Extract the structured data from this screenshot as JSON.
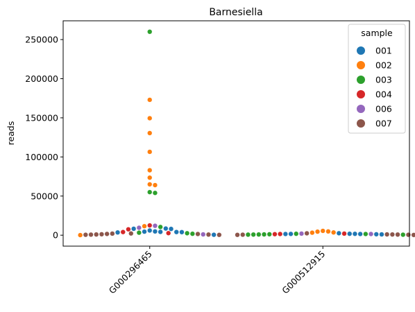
{
  "chart_data": {
    "type": "scatter",
    "subtype": "swarm",
    "title": "Barnesiella",
    "xlabel": "",
    "ylabel": "reads",
    "categories": [
      "G000296465",
      "G000512915"
    ],
    "ylim": [
      -14000,
      274000
    ],
    "yticks": [
      0,
      50000,
      100000,
      150000,
      200000,
      250000
    ],
    "ytick_labels": [
      "0",
      "50000",
      "100000",
      "150000",
      "200000",
      "250000"
    ],
    "grid": false,
    "legend": {
      "title": "sample",
      "placement": "top-right"
    },
    "series": [
      {
        "name": "001",
        "color": "#1f77b4",
        "points": [
          [
            "G000296465",
            4800
          ],
          [
            "G000296465",
            4200
          ],
          [
            "G000296465",
            3900
          ],
          [
            "G000296465",
            3500
          ],
          [
            "G000296465",
            4000
          ],
          [
            "G000296465",
            4500
          ],
          [
            "G000296465",
            8000
          ],
          [
            "G000296465",
            8500
          ],
          [
            "G000296465",
            8200
          ],
          [
            "G000296465",
            6000
          ],
          [
            "G000296465",
            500
          ],
          [
            "G000512915",
            2500
          ],
          [
            "G000512915",
            1800
          ],
          [
            "G000512915",
            1500
          ],
          [
            "G000512915",
            1200
          ],
          [
            "G000512915",
            1000
          ],
          [
            "G000512915",
            1500
          ],
          [
            "G000512915",
            1600
          ],
          [
            "G000512915",
            1700
          ]
        ]
      },
      {
        "name": "002",
        "color": "#ff7f0e",
        "points": [
          [
            "G000296465",
            173000
          ],
          [
            "G000296465",
            149500
          ],
          [
            "G000296465",
            130500
          ],
          [
            "G000296465",
            106500
          ],
          [
            "G000296465",
            83000
          ],
          [
            "G000296465",
            73500
          ],
          [
            "G000296465",
            65000
          ],
          [
            "G000296465",
            64000
          ],
          [
            "G000296465",
            11500
          ],
          [
            "G000296465",
            100
          ],
          [
            "G000512915",
            4500
          ],
          [
            "G000512915",
            3500
          ],
          [
            "G000512915",
            5500
          ],
          [
            "G000512915",
            4800
          ],
          [
            "G000512915",
            3200
          ]
        ]
      },
      {
        "name": "003",
        "color": "#2ca02c",
        "points": [
          [
            "G000296465",
            260000
          ],
          [
            "G000296465",
            55000
          ],
          [
            "G000296465",
            54000
          ],
          [
            "G000296465",
            10500
          ],
          [
            "G000296465",
            3200
          ],
          [
            "G000296465",
            1800
          ],
          [
            "G000296465",
            2500
          ],
          [
            "G000512915",
            1800
          ],
          [
            "G000512915",
            1500
          ],
          [
            "G000512915",
            1200
          ],
          [
            "G000512915",
            1000
          ],
          [
            "G000512915",
            800
          ],
          [
            "G000512915",
            600
          ],
          [
            "G000512915",
            700
          ],
          [
            "G000512915",
            900
          ]
        ]
      },
      {
        "name": "004",
        "color": "#d62728",
        "points": [
          [
            "G000296465",
            12500
          ],
          [
            "G000296465",
            7500
          ],
          [
            "G000296465",
            4000
          ],
          [
            "G000296465",
            2600
          ],
          [
            "G000512915",
            2000
          ],
          [
            "G000512915",
            1500
          ],
          [
            "G000512915",
            1300
          ]
        ]
      },
      {
        "name": "006",
        "color": "#9467bd",
        "points": [
          [
            "G000296465",
            12000
          ],
          [
            "G000296465",
            9500
          ],
          [
            "G000296465",
            1000
          ],
          [
            "G000512915",
            2000
          ],
          [
            "G000512915",
            1500
          ]
        ]
      },
      {
        "name": "007",
        "color": "#8c564b",
        "points": [
          [
            "G000296465",
            2000
          ],
          [
            "G000296465",
            1600
          ],
          [
            "G000296465",
            1200
          ],
          [
            "G000296465",
            900
          ],
          [
            "G000296465",
            700
          ],
          [
            "G000296465",
            500
          ],
          [
            "G000296465",
            400
          ],
          [
            "G000296465",
            800
          ],
          [
            "G000296465",
            1500
          ],
          [
            "G000296465",
            2200
          ],
          [
            "G000512915",
            1000
          ],
          [
            "G000512915",
            800
          ],
          [
            "G000512915",
            600
          ],
          [
            "G000512915",
            500
          ],
          [
            "G000512915",
            400
          ],
          [
            "G000512915",
            300
          ],
          [
            "G000512915",
            900
          ],
          [
            "G000512915",
            2400
          ]
        ]
      }
    ]
  }
}
